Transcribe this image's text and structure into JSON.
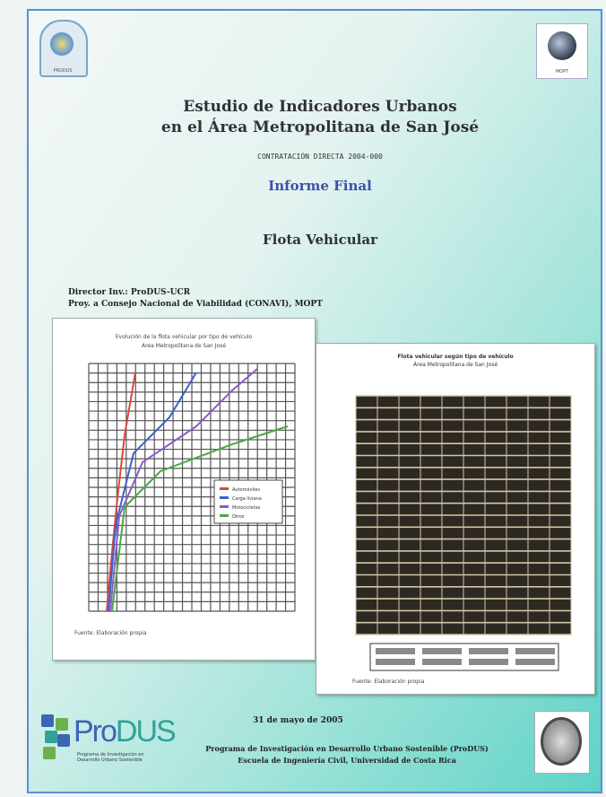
{
  "header": {
    "title_line1": "Estudio de Indicadores Urbanos",
    "title_line2": "en el Área Metropolitana de San José",
    "contract_code": "CONTRATACIÓN DIRECTA 2004-000",
    "subtitle": "Informe Final",
    "topic": "Flota Vehicular"
  },
  "logos": {
    "top_left_caption": "PRODUS",
    "top_right_caption": "MOPT"
  },
  "authors": {
    "line1": "Director Inv.: ProDUS-UCR",
    "line2": "Proy. a Consejo Nacional de Viabilidad (CONAVI), MOPT"
  },
  "figures": {
    "left_title_line1": "Evolución de la flota vehicular por tipo de vehículo",
    "left_title_line2": "Área Metropolitana de San José",
    "left_legend": [
      "Automóviles",
      "Carga liviana",
      "Motocicletas",
      "Otros"
    ],
    "left_source": "Fuente: Elaboración propia",
    "right_title_line1": "Flota vehicular según tipo de vehículo",
    "right_title_line2": "Área Metropolitana de San José",
    "right_source": "Fuente: Elaboración propia"
  },
  "footer": {
    "date": "31 de mayo de 2005",
    "produs_word_a": "Pro",
    "produs_word_b": "DUS",
    "produs_sub": "Programa de Investigación en Desarrollo Urbano Sostenible",
    "line1": "Programa de Investigación en Desarrollo Urbano Sostenible (ProDUS)",
    "line2": "Escuela de Ingeniería Civil, Universidad de Costa Rica"
  },
  "colors": {
    "border": "#5a8fd0",
    "subtitle": "#3a52a8",
    "teal": "#5fd3c6"
  }
}
